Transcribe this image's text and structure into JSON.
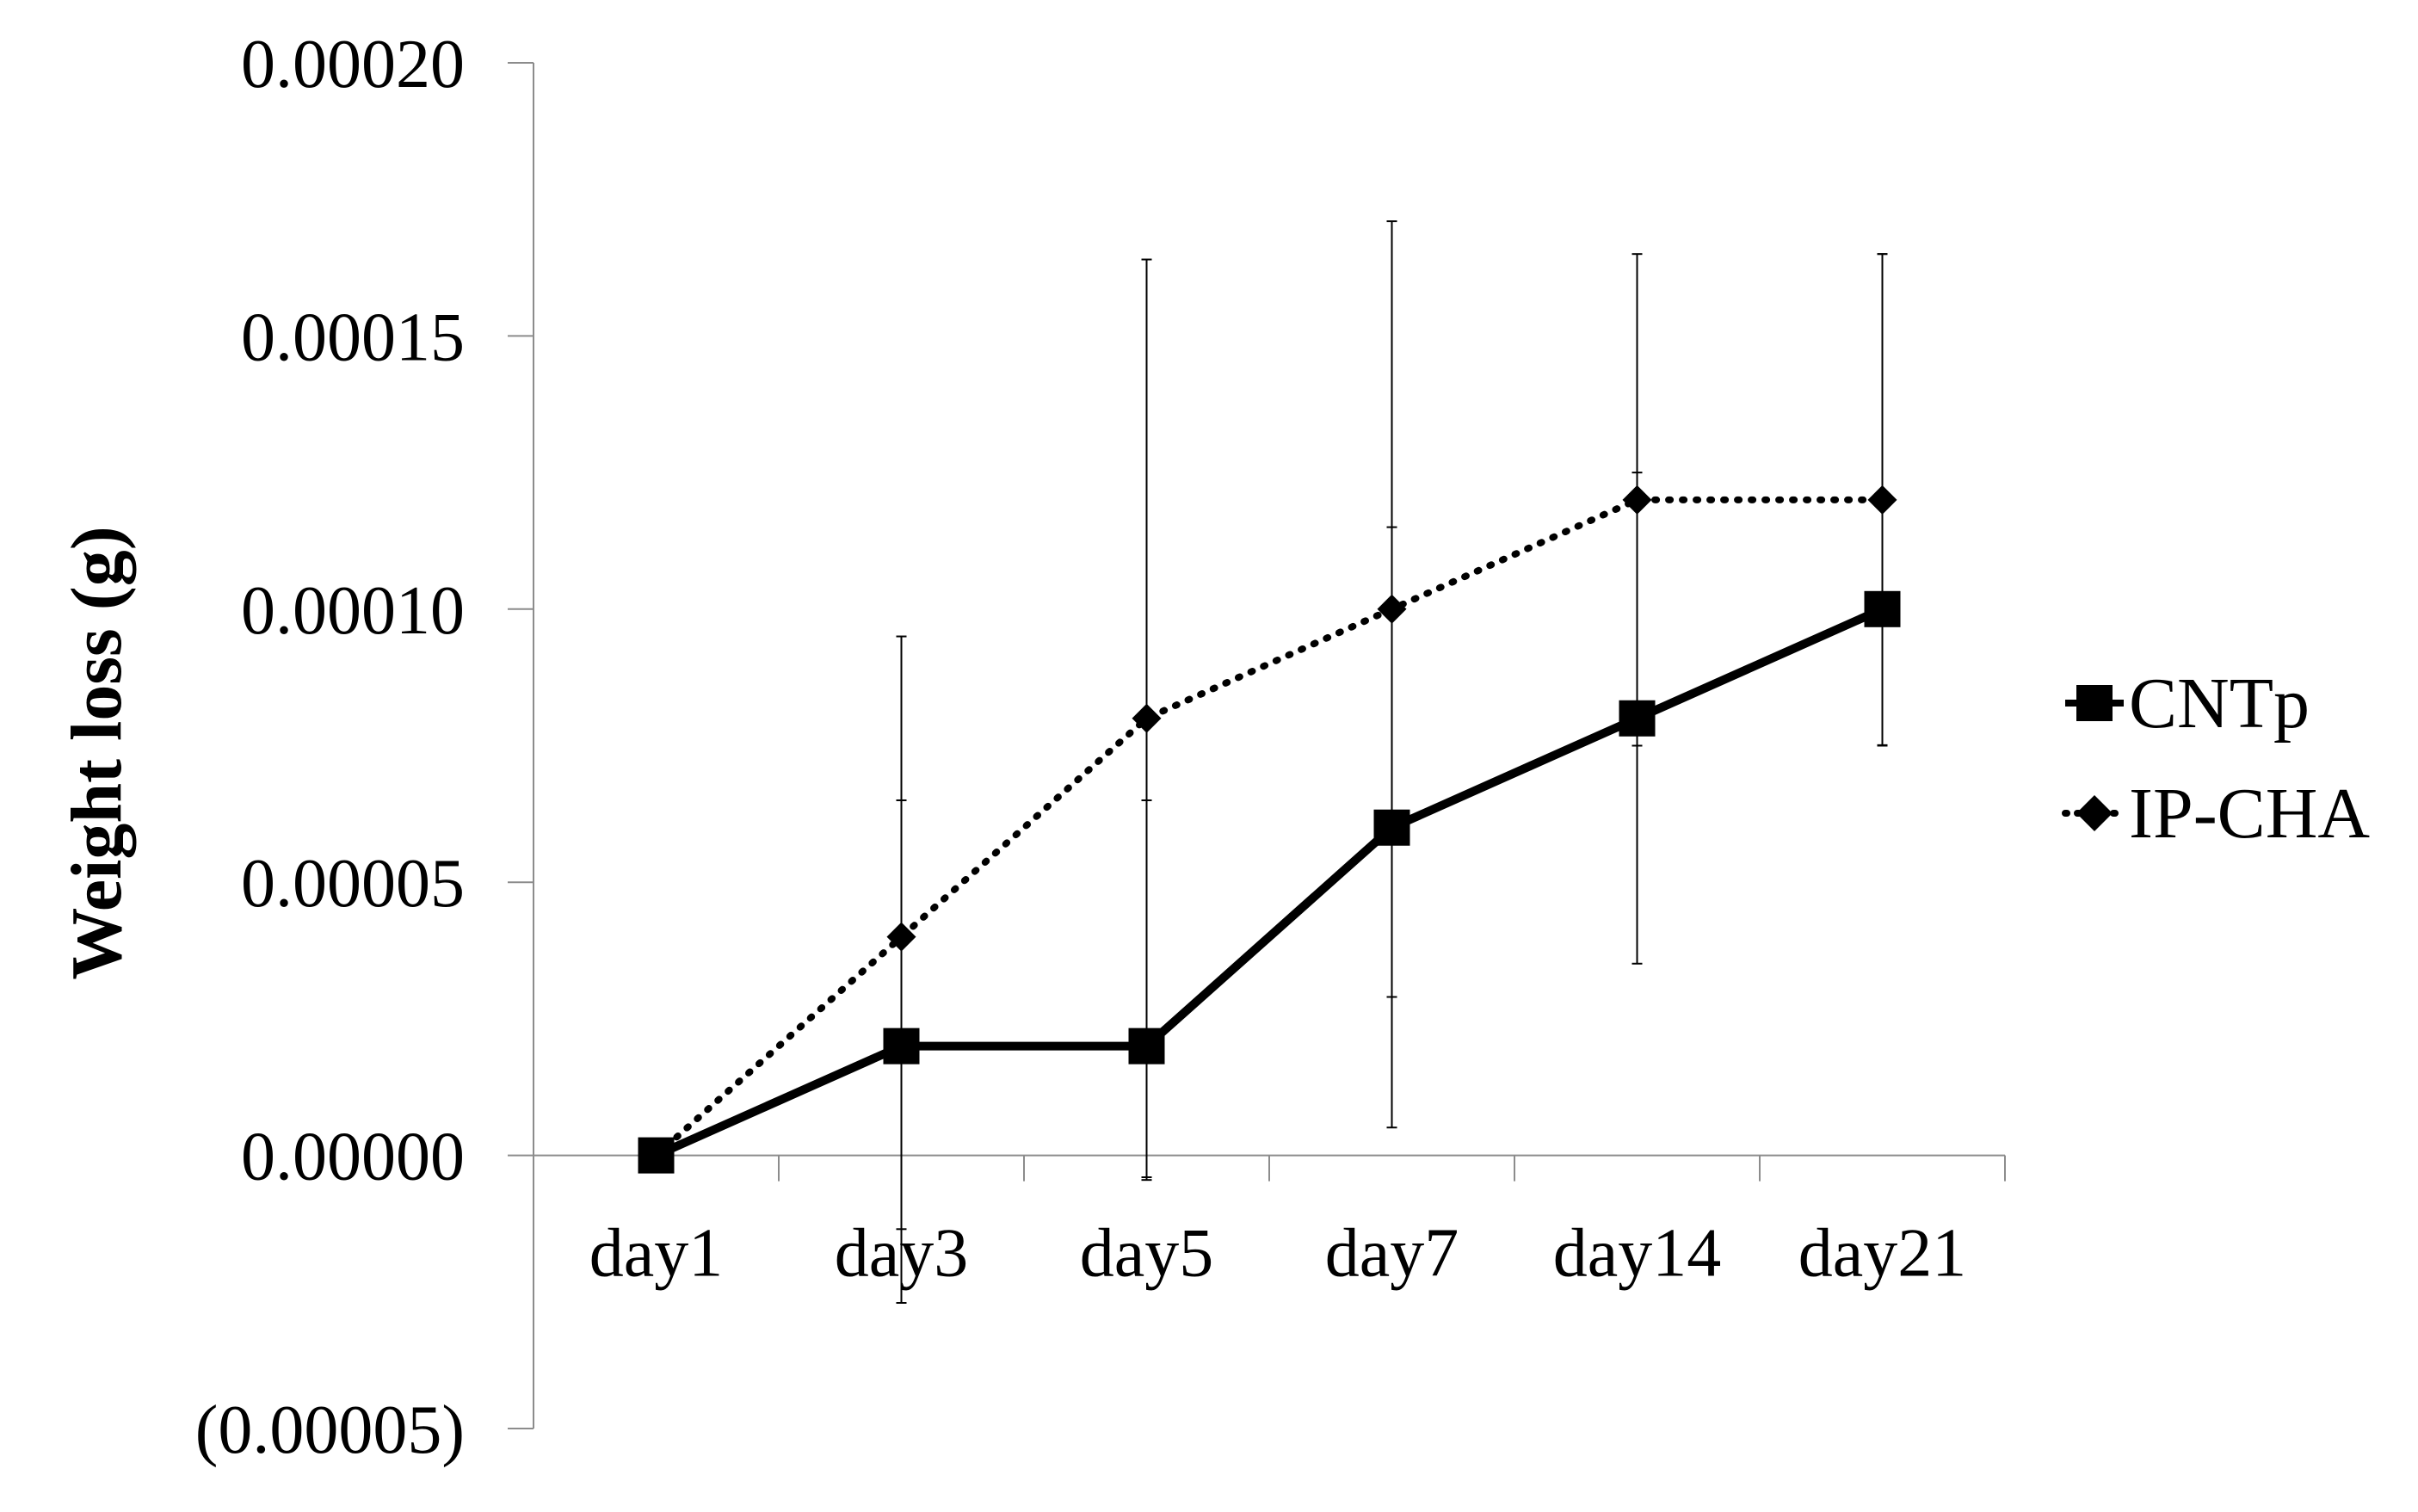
{
  "chart_data": {
    "type": "line",
    "title": "",
    "xlabel": "",
    "ylabel": "Weight loss (g)",
    "categories": [
      "day1",
      "day3",
      "day5",
      "day7",
      "day14",
      "day21"
    ],
    "ylim": [
      -5e-05,
      0.0002
    ],
    "yticks": [
      -5e-05,
      0.0,
      5e-05,
      0.0001,
      0.00015,
      0.0002
    ],
    "ytick_labels": [
      "(0.00005)",
      "0.00000",
      "0.00005",
      "0.00010",
      "0.00015",
      "0.00020"
    ],
    "grid": false,
    "legend_position": "right",
    "series": [
      {
        "name": "CNTp",
        "values": [
          0.0,
          2e-05,
          2e-05,
          6e-05,
          8e-05,
          0.0001
        ],
        "error_low": [
          0.0,
          -2.7e-05,
          -4e-06,
          5.1e-06,
          3.51e-05,
          7.51e-05
        ],
        "error_high": [
          0.0,
          6.5e-05,
          6.5e-05,
          0.000115,
          0.000125,
          0.000165
        ],
        "line_style": "solid",
        "marker": "square",
        "color": "#000000"
      },
      {
        "name": "IP-CHA",
        "values": [
          0.0,
          4e-05,
          8e-05,
          0.0001,
          0.00012,
          0.00012
        ],
        "error_low": [
          0.0,
          -1.35e-05,
          -4.5e-06,
          2.9e-05,
          7.5e-05,
          7.5e-05
        ],
        "error_high": [
          0.0,
          9.5e-05,
          0.000164,
          0.000171,
          0.000165,
          0.000165
        ],
        "line_style": "dotted",
        "marker": "diamond",
        "color": "#000000"
      }
    ]
  }
}
